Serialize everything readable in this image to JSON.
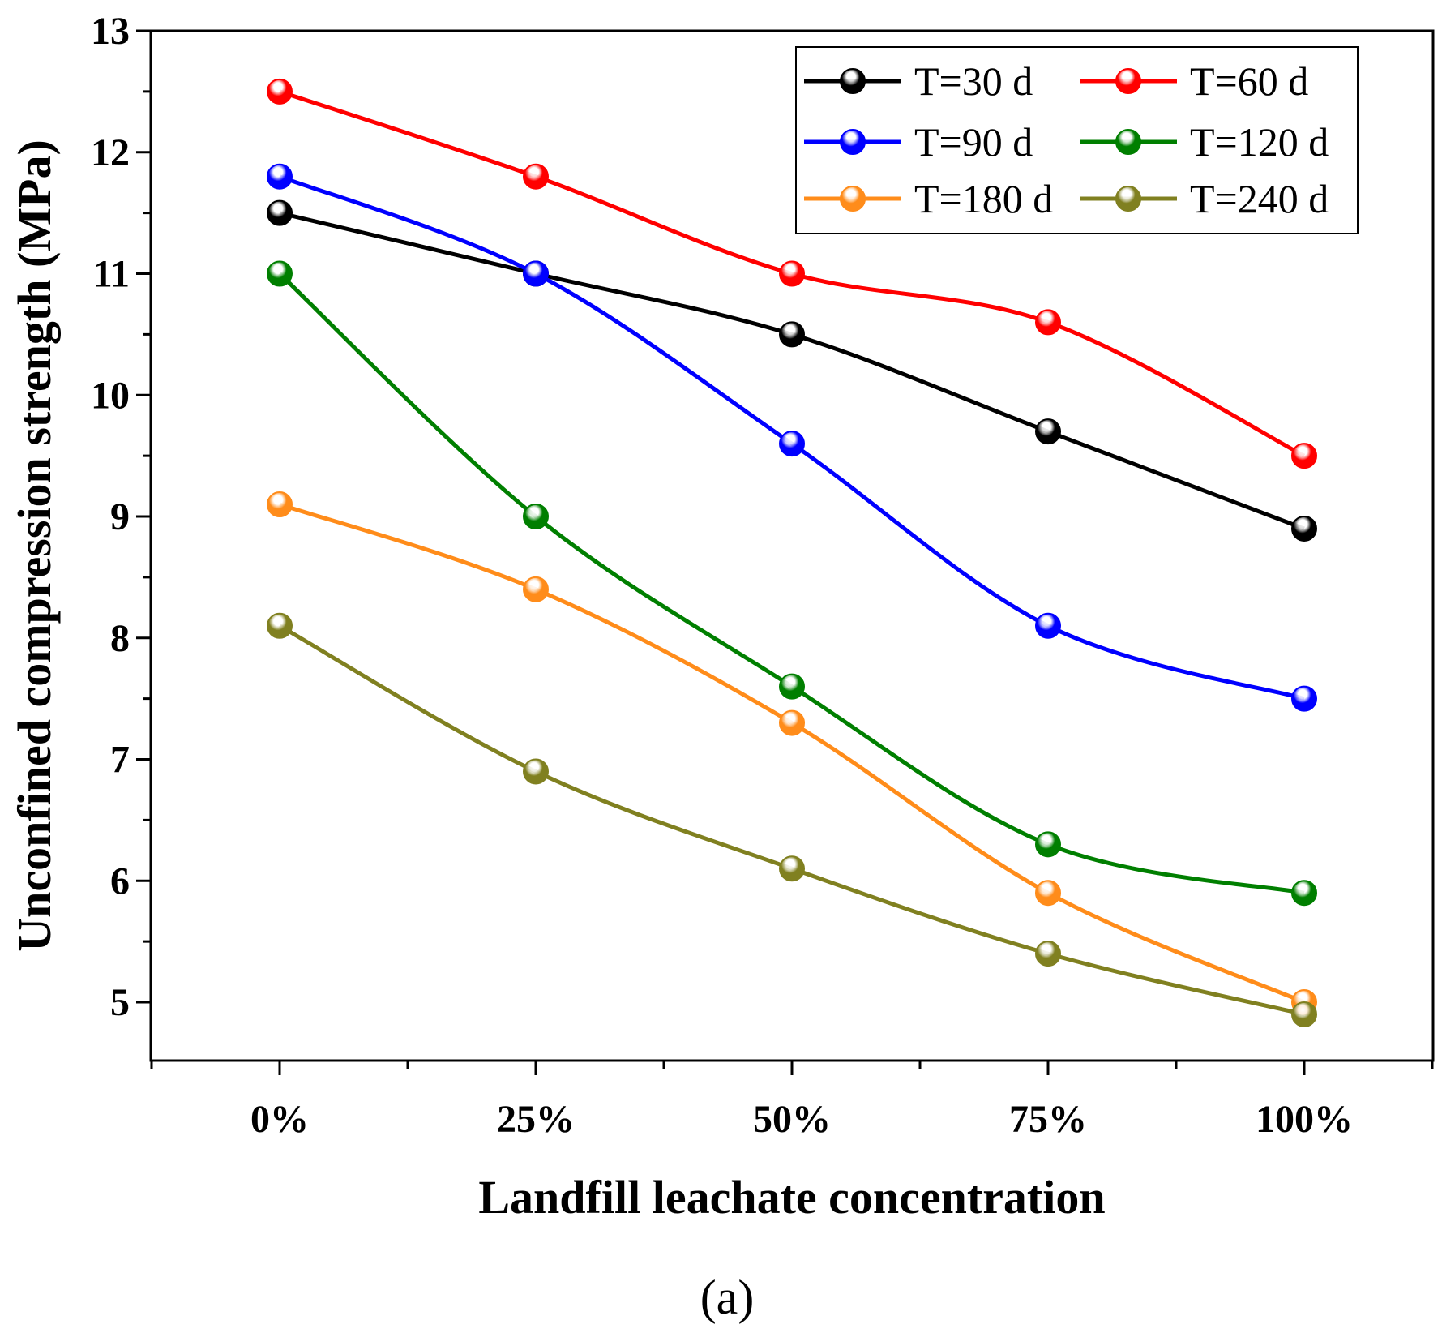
{
  "chart_data": {
    "type": "line",
    "title": "",
    "xlabel": "Landfill leachate concentration",
    "ylabel": "Unconfined compression strength (MPa)",
    "categories": [
      "0%",
      "25%",
      "50%",
      "75%",
      "100%"
    ],
    "ylim": [
      4.5,
      13
    ],
    "yticks": [
      5,
      6,
      7,
      8,
      9,
      10,
      11,
      12,
      13
    ],
    "legend_position": "top-right",
    "series": [
      {
        "name": "T=30 d",
        "color": "#000000",
        "values": [
          11.5,
          11.0,
          10.5,
          9.7,
          8.9
        ]
      },
      {
        "name": "T=60 d",
        "color": "#ff0000",
        "values": [
          12.5,
          11.8,
          11.0,
          10.6,
          9.5
        ]
      },
      {
        "name": "T=90 d",
        "color": "#0000ff",
        "values": [
          11.8,
          11.0,
          9.6,
          8.1,
          7.5
        ]
      },
      {
        "name": "T=120 d",
        "color": "#007f00",
        "values": [
          11.0,
          9.0,
          7.6,
          6.3,
          5.9
        ]
      },
      {
        "name": "T=180 d",
        "color": "#ff8c1a",
        "values": [
          9.1,
          8.4,
          7.3,
          5.9,
          5.0
        ]
      },
      {
        "name": "T=240 d",
        "color": "#808020",
        "values": [
          8.1,
          6.9,
          6.1,
          5.4,
          4.9
        ]
      }
    ]
  },
  "panel_label": "(a)"
}
